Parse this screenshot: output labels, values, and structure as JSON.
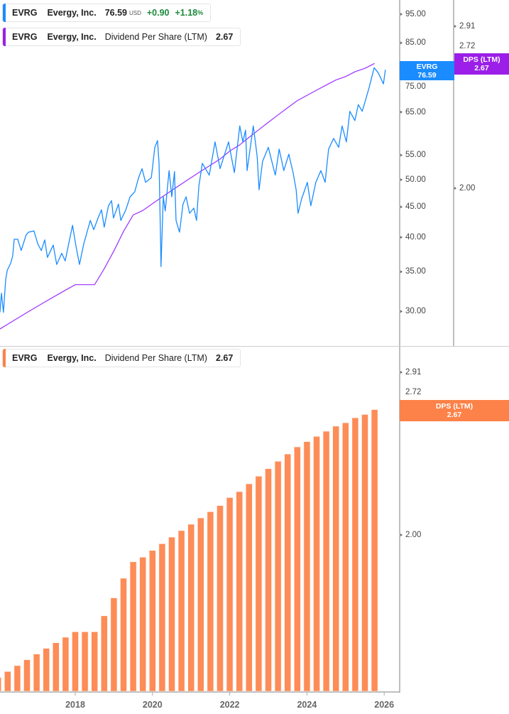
{
  "legend_price": {
    "ticker": "EVRG",
    "name": "Evergy, Inc.",
    "price": "76.59",
    "currency": "USD",
    "change": "+0.90",
    "change_pct": "+1.18",
    "pct_sign": "%",
    "color": "#1a8cff"
  },
  "legend_dps_top": {
    "ticker": "EVRG",
    "name": "Evergy, Inc.",
    "metric": "Dividend Per Share (LTM)",
    "value": "2.67",
    "color": "#9b1fe8"
  },
  "legend_dps_bottom": {
    "ticker": "EVRG",
    "name": "Evergy, Inc.",
    "metric": "Dividend Per Share (LTM)",
    "value": "2.67",
    "color": "#fc8249"
  },
  "badges": {
    "price": {
      "line1": "EVRG",
      "line2": "76.59",
      "color": "#1a8cff"
    },
    "dps_top": {
      "line1": "DPS (LTM)",
      "line2": "2.67",
      "color": "#9b1fe8"
    },
    "dps_bottom": {
      "line1": "DPS (LTM)",
      "line2": "2.67",
      "color": "#fc8249"
    }
  },
  "chart_data": [
    {
      "type": "line",
      "scale": "log",
      "grid": false,
      "price_axis_ticks": [
        "95.00",
        "85.00",
        "75.00",
        "65.00",
        "55.00",
        "50.00",
        "45.00",
        "40.00",
        "35.00",
        "30.00"
      ],
      "dps_axis_ticks": [
        "2.91",
        "2.72",
        "2.00"
      ],
      "series": [
        {
          "name": "EVRG",
          "color": "#1a8cff",
          "x": [
            2016.05,
            2016.09,
            2016.14,
            2016.2,
            2016.24,
            2016.33,
            2016.38,
            2016.42,
            2016.51,
            2016.6,
            2016.73,
            2016.79,
            2016.93,
            2017.03,
            2017.12,
            2017.21,
            2017.28,
            2017.43,
            2017.52,
            2017.65,
            2017.74,
            2017.83,
            2017.93,
            2018.02,
            2018.11,
            2018.22,
            2018.39,
            2018.48,
            2018.59,
            2018.68,
            2018.75,
            2018.86,
            2018.94,
            2018.99,
            2019.12,
            2019.18,
            2019.31,
            2019.42,
            2019.54,
            2019.64,
            2019.73,
            2019.82,
            2019.97,
            2020.06,
            2020.13,
            2020.17,
            2020.21,
            2020.22,
            2020.28,
            2020.33,
            2020.43,
            2020.5,
            2020.57,
            2020.61,
            2020.7,
            2020.79,
            2020.87,
            2020.96,
            2021.07,
            2021.14,
            2021.2,
            2021.29,
            2021.47,
            2021.62,
            2021.75,
            2021.97,
            2022.12,
            2022.26,
            2022.34,
            2022.41,
            2022.45,
            2022.61,
            2022.71,
            2022.76,
            2022.85,
            2023.0,
            2023.09,
            2023.18,
            2023.28,
            2023.4,
            2023.53,
            2023.64,
            2023.72,
            2023.77,
            2023.86,
            2024.01,
            2024.1,
            2024.23,
            2024.36,
            2024.47,
            2024.56,
            2024.69,
            2024.82,
            2024.91,
            2025.02,
            2025.11,
            2025.24,
            2025.33,
            2025.43,
            2025.52,
            2025.61,
            2025.74,
            2025.85,
            2025.98,
            2026.03
          ],
          "y": [
            29.9,
            32.2,
            29.9,
            34.0,
            35.2,
            36.2,
            37.2,
            39.7,
            39.7,
            38.0,
            40.4,
            40.8,
            41.0,
            39.0,
            38.0,
            39.6,
            37.0,
            38.8,
            36.0,
            37.6,
            36.5,
            39.0,
            41.9,
            38.6,
            36.0,
            39.0,
            42.7,
            41.2,
            43.1,
            44.5,
            41.6,
            45.2,
            46.1,
            43.1,
            45.5,
            42.7,
            44.5,
            46.8,
            47.7,
            50.4,
            52.2,
            49.5,
            50.4,
            56.7,
            58.2,
            53.3,
            39.3,
            35.7,
            46.8,
            44.3,
            51.8,
            46.8,
            51.6,
            42.7,
            40.8,
            45.5,
            46.8,
            43.9,
            44.8,
            42.7,
            48.7,
            53.3,
            50.9,
            57.9,
            52.2,
            57.9,
            51.4,
            61.6,
            57.9,
            60.6,
            51.8,
            61.6,
            54.8,
            48.1,
            53.7,
            56.7,
            53.7,
            50.9,
            56.3,
            51.8,
            55.2,
            51.4,
            48.1,
            43.9,
            46.4,
            49.5,
            45.2,
            49.5,
            51.8,
            49.5,
            56.3,
            58.7,
            56.7,
            61.6,
            57.9,
            65.2,
            62.9,
            66.9,
            65.2,
            68.2,
            71.5,
            77.2,
            75.6,
            72.5,
            76.59
          ]
        },
        {
          "name": "DPS (LTM)",
          "color": "#9b1fe8",
          "source": "dps"
        }
      ]
    },
    {
      "type": "bar",
      "scale": "log",
      "grid": false,
      "y_ticks": [
        "2.91",
        "2.72",
        "2.00"
      ],
      "x_ticks": [
        "2018",
        "2020",
        "2022",
        "2024",
        "2026"
      ],
      "series": [
        {
          "name": "DPS (LTM)",
          "color": "#fc8249",
          "x": [
            2016.0,
            2016.25,
            2016.5,
            2016.75,
            2017.0,
            2017.25,
            2017.5,
            2017.75,
            2018.0,
            2018.25,
            2018.5,
            2018.75,
            2019.0,
            2019.25,
            2019.5,
            2019.75,
            2020.0,
            2020.25,
            2020.5,
            2020.75,
            2021.0,
            2021.25,
            2021.5,
            2021.75,
            2022.0,
            2022.25,
            2022.5,
            2022.75,
            2023.0,
            2023.25,
            2023.5,
            2023.75,
            2024.0,
            2024.25,
            2024.5,
            2024.75,
            2025.0,
            2025.25,
            2025.5,
            2025.75
          ],
          "values": [
            1.44,
            1.46,
            1.48,
            1.5,
            1.52,
            1.54,
            1.56,
            1.58,
            1.6,
            1.6,
            1.6,
            1.66,
            1.73,
            1.81,
            1.88,
            1.9,
            1.93,
            1.96,
            1.99,
            2.02,
            2.05,
            2.08,
            2.11,
            2.14,
            2.18,
            2.21,
            2.25,
            2.29,
            2.33,
            2.37,
            2.41,
            2.45,
            2.48,
            2.51,
            2.54,
            2.57,
            2.59,
            2.62,
            2.64,
            2.67
          ]
        }
      ]
    }
  ]
}
